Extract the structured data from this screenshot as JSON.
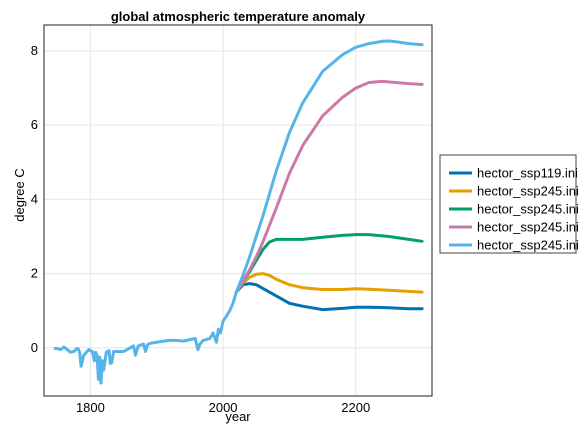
{
  "chart_data": {
    "type": "line",
    "title": "global atmospheric temperature anomaly",
    "xlabel": "year",
    "ylabel": "degree C",
    "xlim": [
      1730,
      2315
    ],
    "ylim": [
      -1.3,
      8.7
    ],
    "xticks": [
      1800,
      2000,
      2200
    ],
    "yticks": [
      0,
      2,
      4,
      6,
      8
    ],
    "grid": true,
    "legend_position": "right",
    "history": {
      "x": [
        1745,
        1750,
        1755,
        1760,
        1765,
        1770,
        1775,
        1778,
        1780,
        1782,
        1784,
        1786,
        1790,
        1795,
        1798,
        1800,
        1803,
        1806,
        1808,
        1810,
        1812,
        1814,
        1816,
        1818,
        1820,
        1824,
        1828,
        1830,
        1832,
        1835,
        1840,
        1850,
        1860,
        1865,
        1868,
        1872,
        1880,
        1883,
        1886,
        1890,
        1900,
        1910,
        1920,
        1930,
        1940,
        1950,
        1958,
        1962,
        1965,
        1970,
        1980,
        1985,
        1990,
        1993,
        1996,
        2000,
        2005,
        2010,
        2015,
        2020
      ],
      "y": [
        -0.02,
        -0.02,
        -0.05,
        0.02,
        -0.05,
        -0.12,
        -0.1,
        -0.05,
        -0.02,
        -0.04,
        -0.15,
        -0.5,
        -0.2,
        -0.1,
        -0.05,
        -0.08,
        -0.1,
        -0.35,
        -0.12,
        -0.22,
        -0.85,
        -0.25,
        -0.95,
        -0.35,
        -0.6,
        -0.12,
        -0.08,
        -0.42,
        -0.4,
        -0.1,
        -0.1,
        -0.1,
        0.0,
        0.05,
        -0.2,
        0.05,
        0.1,
        -0.1,
        0.08,
        0.12,
        0.15,
        0.18,
        0.2,
        0.2,
        0.18,
        0.22,
        0.25,
        -0.05,
        0.1,
        0.2,
        0.25,
        0.4,
        0.15,
        0.5,
        0.4,
        0.72,
        0.85,
        1.0,
        1.2,
        1.5
      ]
    },
    "series": [
      {
        "name": "hector_ssp119.ini",
        "color": "#0072b2",
        "x": [
          2020,
          2030,
          2040,
          2050,
          2060,
          2080,
          2100,
          2120,
          2150,
          2180,
          2200,
          2220,
          2250,
          2280,
          2300
        ],
        "y": [
          1.5,
          1.7,
          1.73,
          1.7,
          1.6,
          1.4,
          1.2,
          1.12,
          1.03,
          1.06,
          1.09,
          1.09,
          1.08,
          1.05,
          1.05
        ]
      },
      {
        "name": "hector_ssp245.ini",
        "color": "#e69f00",
        "x": [
          2020,
          2030,
          2040,
          2050,
          2060,
          2070,
          2080,
          2100,
          2120,
          2150,
          2180,
          2200,
          2220,
          2250,
          2280,
          2300
        ],
        "y": [
          1.5,
          1.75,
          1.9,
          1.98,
          2.0,
          1.95,
          1.85,
          1.7,
          1.62,
          1.57,
          1.57,
          1.59,
          1.58,
          1.55,
          1.52,
          1.5
        ]
      },
      {
        "name": "hector_ssp245.ini",
        "color": "#009e73",
        "x": [
          2020,
          2030,
          2040,
          2050,
          2060,
          2070,
          2080,
          2090,
          2100,
          2120,
          2150,
          2180,
          2200,
          2220,
          2250,
          2280,
          2300
        ],
        "y": [
          1.5,
          1.8,
          2.05,
          2.35,
          2.65,
          2.85,
          2.92,
          2.92,
          2.92,
          2.92,
          2.98,
          3.03,
          3.05,
          3.05,
          3.0,
          2.92,
          2.87
        ]
      },
      {
        "name": "hector_ssp245.ini",
        "color": "#cc79a7",
        "x": [
          2020,
          2030,
          2040,
          2050,
          2060,
          2080,
          2100,
          2120,
          2150,
          2180,
          2200,
          2220,
          2240,
          2260,
          2280,
          2300
        ],
        "y": [
          1.5,
          1.8,
          2.1,
          2.45,
          2.85,
          3.75,
          4.7,
          5.45,
          6.25,
          6.75,
          7.0,
          7.15,
          7.18,
          7.15,
          7.12,
          7.1
        ]
      },
      {
        "name": "hector_ssp245.ini",
        "color": "#56b4e9",
        "x": [
          2020,
          2030,
          2040,
          2050,
          2060,
          2080,
          2100,
          2120,
          2150,
          2180,
          2200,
          2220,
          2240,
          2250,
          2260,
          2280,
          2300
        ],
        "y": [
          1.5,
          1.95,
          2.45,
          3.0,
          3.55,
          4.75,
          5.8,
          6.6,
          7.45,
          7.9,
          8.1,
          8.2,
          8.26,
          8.27,
          8.25,
          8.2,
          8.17
        ]
      }
    ]
  }
}
